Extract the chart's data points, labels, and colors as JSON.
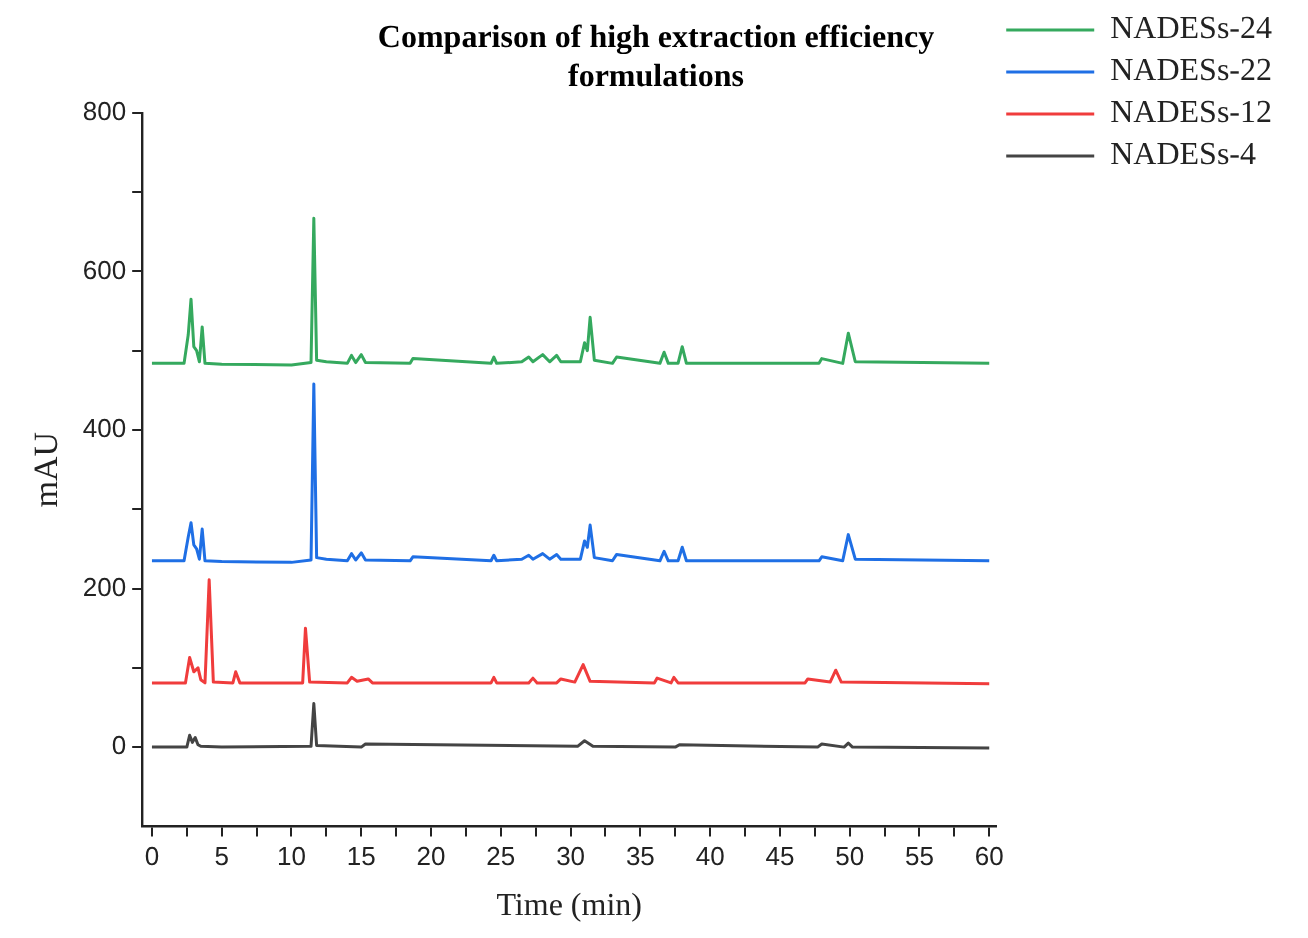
{
  "chart_data": {
    "type": "line",
    "title": "Comparison of high extraction efficiency formulations",
    "xlabel": "Time (min)",
    "ylabel": "mAU",
    "xlim": [
      -0.7,
      60.5
    ],
    "xticks": [
      0,
      {
        "value": 2.5,
        "label": null
      },
      5,
      {
        "value": 7.5,
        "label": null
      },
      10,
      {
        "value": 12.5,
        "label": null
      },
      15,
      {
        "value": 17.5,
        "label": null
      },
      20,
      {
        "value": 22.5,
        "label": null
      },
      25,
      {
        "value": 27.5,
        "label": null
      },
      30,
      {
        "value": 32.5,
        "label": null
      },
      35,
      {
        "value": 37.5,
        "label": null
      },
      40,
      {
        "value": 42.5,
        "label": null
      },
      45,
      {
        "value": 47.5,
        "label": null
      },
      50,
      {
        "value": 52.5,
        "label": null
      },
      55,
      {
        "value": 57.5,
        "label": null
      },
      60
    ],
    "ylim": [
      -100,
      800
    ],
    "yticks": [
      0,
      {
        "value": 100,
        "label": null
      },
      200,
      {
        "value": 300,
        "label": null
      },
      400,
      {
        "value": 500,
        "label": null
      },
      600,
      {
        "value": 700,
        "label": null
      },
      800
    ],
    "grid": false,
    "legend": "top right",
    "marker": "none",
    "line_style": "solid",
    "series": [
      {
        "name": "NADESs-24",
        "color": "#35a95e",
        "x": [
          0,
          2.3,
          2.6,
          2.8,
          3.0,
          3.2,
          3.4,
          3.6,
          3.8,
          5,
          10,
          11.4,
          11.6,
          11.8,
          12.5,
          14,
          14.3,
          14.6,
          15,
          15.3,
          18.5,
          18.7,
          24.3,
          24.5,
          24.7,
          26.5,
          27,
          27.3,
          28,
          28.5,
          29,
          29.3,
          30.7,
          31.0,
          31.2,
          31.4,
          31.7,
          33,
          33.3,
          36.4,
          36.7,
          37,
          37.7,
          38.0,
          38.3,
          47.8,
          48,
          49.5,
          49.9,
          50.4,
          60
        ],
        "values": [
          484,
          484,
          520,
          565,
          505,
          500,
          486,
          530,
          484,
          483,
          482,
          485,
          667,
          488,
          486,
          484,
          494,
          485,
          495,
          485,
          484,
          490,
          484,
          492,
          484,
          486,
          492,
          486,
          495,
          486,
          494,
          486,
          486,
          510,
          500,
          542,
          488,
          484,
          492,
          484,
          498,
          484,
          484,
          505,
          484,
          484,
          490,
          484,
          522,
          486,
          484
        ]
      },
      {
        "name": "NADESs-22",
        "color": "#1f6fe5",
        "x": [
          0,
          2.3,
          2.6,
          2.8,
          3.0,
          3.2,
          3.4,
          3.6,
          3.8,
          5,
          10,
          11.4,
          11.6,
          11.8,
          12.5,
          14,
          14.3,
          14.6,
          15,
          15.3,
          18.5,
          18.7,
          24.3,
          24.5,
          24.7,
          26.5,
          27,
          27.3,
          28,
          28.5,
          29,
          29.3,
          30.7,
          31.0,
          31.2,
          31.4,
          31.7,
          33,
          33.3,
          36.4,
          36.7,
          37,
          37.7,
          38.0,
          38.3,
          47.8,
          48,
          49.5,
          49.9,
          50.4,
          60
        ],
        "values": [
          235,
          235,
          265,
          283,
          255,
          250,
          237,
          275,
          235,
          234,
          233,
          236,
          458,
          239,
          237,
          235,
          244,
          236,
          245,
          236,
          235,
          240,
          235,
          242,
          235,
          237,
          242,
          237,
          244,
          237,
          243,
          237,
          237,
          260,
          252,
          280,
          239,
          235,
          243,
          235,
          247,
          235,
          235,
          252,
          235,
          235,
          240,
          235,
          268,
          237,
          235
        ]
      },
      {
        "name": "NADESs-12",
        "color": "#f03c3c",
        "x": [
          0,
          2.4,
          2.7,
          3.0,
          3.3,
          3.5,
          3.8,
          4.1,
          4.4,
          5.8,
          6.0,
          6.3,
          10.8,
          11.0,
          11.3,
          14,
          14.3,
          14.7,
          15.5,
          15.8,
          24.3,
          24.5,
          24.7,
          27,
          27.3,
          27.6,
          29,
          29.3,
          30.3,
          30.9,
          31.4,
          36,
          36.2,
          37.2,
          37.4,
          37.7,
          46.8,
          47,
          48.6,
          49.0,
          49.4,
          60
        ],
        "values": [
          81,
          81,
          113,
          95,
          100,
          85,
          81,
          211,
          82,
          81,
          95,
          81,
          81,
          150,
          82,
          81,
          88,
          83,
          86,
          81,
          81,
          88,
          81,
          81,
          87,
          81,
          81,
          86,
          82,
          104,
          83,
          81,
          87,
          81,
          88,
          81,
          81,
          86,
          82,
          97,
          82,
          80
        ]
      },
      {
        "name": "NADESs-4",
        "color": "#444444",
        "x": [
          0,
          2.5,
          2.7,
          2.9,
          3.1,
          3.3,
          3.5,
          5,
          11.4,
          11.6,
          11.8,
          15,
          15.3,
          30.5,
          31.0,
          31.6,
          37.5,
          37.8,
          47.7,
          48,
          49.6,
          49.9,
          50.2,
          60
        ],
        "values": [
          0,
          0,
          15,
          6,
          12,
          3,
          1,
          0,
          1,
          55,
          2,
          0,
          4,
          1,
          8,
          1,
          0,
          3,
          0,
          4,
          0,
          5,
          0,
          -1
        ]
      }
    ]
  }
}
